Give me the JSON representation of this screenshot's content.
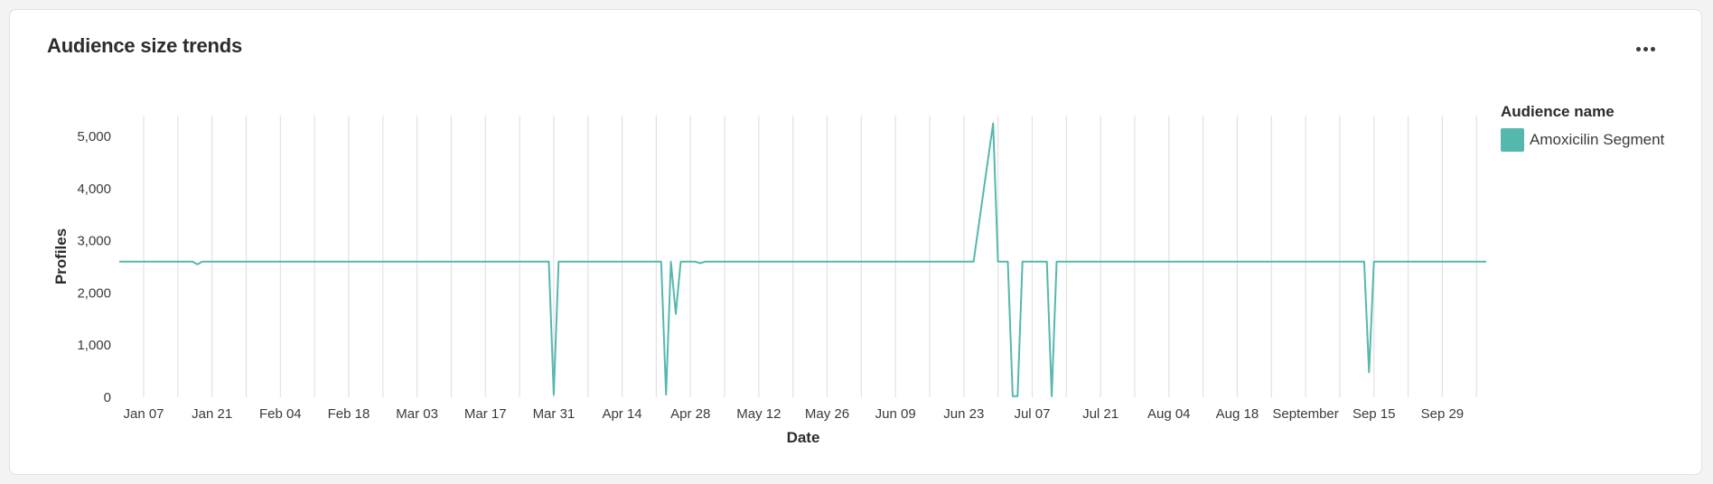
{
  "card": {
    "title": "Audience size trends",
    "more_icon": "more-horizontal-icon"
  },
  "legend": {
    "title": "Audience name",
    "items": [
      {
        "label": "Amoxicilin Segment",
        "color": "#55b8ad"
      }
    ]
  },
  "chart_data": {
    "type": "line",
    "xlabel": "Date",
    "ylabel": "Profiles",
    "ylim": [
      0,
      5400
    ],
    "yticks": [
      "0",
      "1,000",
      "2,000",
      "3,000",
      "4,000",
      "5,000"
    ],
    "ytick_values": [
      0,
      1000,
      2000,
      3000,
      4000,
      5000
    ],
    "xlim": [
      "2024-01-02",
      "2024-10-08"
    ],
    "xticks": [
      {
        "date": "2024-01-07",
        "label": "Jan 07"
      },
      {
        "date": "2024-01-21",
        "label": "Jan 21"
      },
      {
        "date": "2024-02-04",
        "label": "Feb 04"
      },
      {
        "date": "2024-02-18",
        "label": "Feb 18"
      },
      {
        "date": "2024-03-03",
        "label": "Mar 03"
      },
      {
        "date": "2024-03-17",
        "label": "Mar 17"
      },
      {
        "date": "2024-03-31",
        "label": "Mar 31"
      },
      {
        "date": "2024-04-14",
        "label": "Apr 14"
      },
      {
        "date": "2024-04-28",
        "label": "Apr 28"
      },
      {
        "date": "2024-05-12",
        "label": "May 12"
      },
      {
        "date": "2024-05-26",
        "label": "May 26"
      },
      {
        "date": "2024-06-09",
        "label": "Jun 09"
      },
      {
        "date": "2024-06-23",
        "label": "Jun 23"
      },
      {
        "date": "2024-07-07",
        "label": "Jul 07"
      },
      {
        "date": "2024-07-21",
        "label": "Jul 21"
      },
      {
        "date": "2024-08-04",
        "label": "Aug 04"
      },
      {
        "date": "2024-08-18",
        "label": "Aug 18"
      },
      {
        "date": "2024-09-01",
        "label": "September"
      },
      {
        "date": "2024-09-15",
        "label": "Sep 15"
      },
      {
        "date": "2024-09-29",
        "label": "Sep 29"
      }
    ],
    "grid_dates": [
      "2024-01-07",
      "2024-01-14",
      "2024-01-21",
      "2024-01-28",
      "2024-02-04",
      "2024-02-11",
      "2024-02-18",
      "2024-02-25",
      "2024-03-03",
      "2024-03-10",
      "2024-03-17",
      "2024-03-24",
      "2024-03-31",
      "2024-04-07",
      "2024-04-14",
      "2024-04-21",
      "2024-04-28",
      "2024-05-05",
      "2024-05-12",
      "2024-05-19",
      "2024-05-26",
      "2024-06-02",
      "2024-06-09",
      "2024-06-16",
      "2024-06-23",
      "2024-06-30",
      "2024-07-07",
      "2024-07-14",
      "2024-07-21",
      "2024-07-28",
      "2024-08-04",
      "2024-08-11",
      "2024-08-18",
      "2024-08-25",
      "2024-09-01",
      "2024-09-08",
      "2024-09-15",
      "2024-09-22",
      "2024-09-29",
      "2024-10-06"
    ],
    "grid": "vertical",
    "legend_position": "top-right",
    "series": [
      {
        "name": "Amoxicilin Segment",
        "color": "#55b8ad",
        "points": [
          [
            "2024-01-02",
            2600
          ],
          [
            "2024-01-17",
            2600
          ],
          [
            "2024-01-18",
            2550
          ],
          [
            "2024-01-19",
            2600
          ],
          [
            "2024-03-30",
            2600
          ],
          [
            "2024-03-31",
            50
          ],
          [
            "2024-04-01",
            2600
          ],
          [
            "2024-04-22",
            2600
          ],
          [
            "2024-04-23",
            50
          ],
          [
            "2024-04-24",
            2600
          ],
          [
            "2024-04-25",
            1600
          ],
          [
            "2024-04-26",
            2600
          ],
          [
            "2024-04-29",
            2600
          ],
          [
            "2024-04-30",
            2570
          ],
          [
            "2024-05-01",
            2600
          ],
          [
            "2024-06-25",
            2600
          ],
          [
            "2024-06-29",
            5250
          ],
          [
            "2024-06-30",
            2600
          ],
          [
            "2024-07-02",
            2600
          ],
          [
            "2024-07-03",
            20
          ],
          [
            "2024-07-04",
            20
          ],
          [
            "2024-07-05",
            2600
          ],
          [
            "2024-07-10",
            2600
          ],
          [
            "2024-07-11",
            20
          ],
          [
            "2024-07-12",
            2600
          ],
          [
            "2024-09-13",
            2600
          ],
          [
            "2024-09-14",
            480
          ],
          [
            "2024-09-15",
            2600
          ],
          [
            "2024-10-08",
            2600
          ]
        ]
      }
    ]
  }
}
